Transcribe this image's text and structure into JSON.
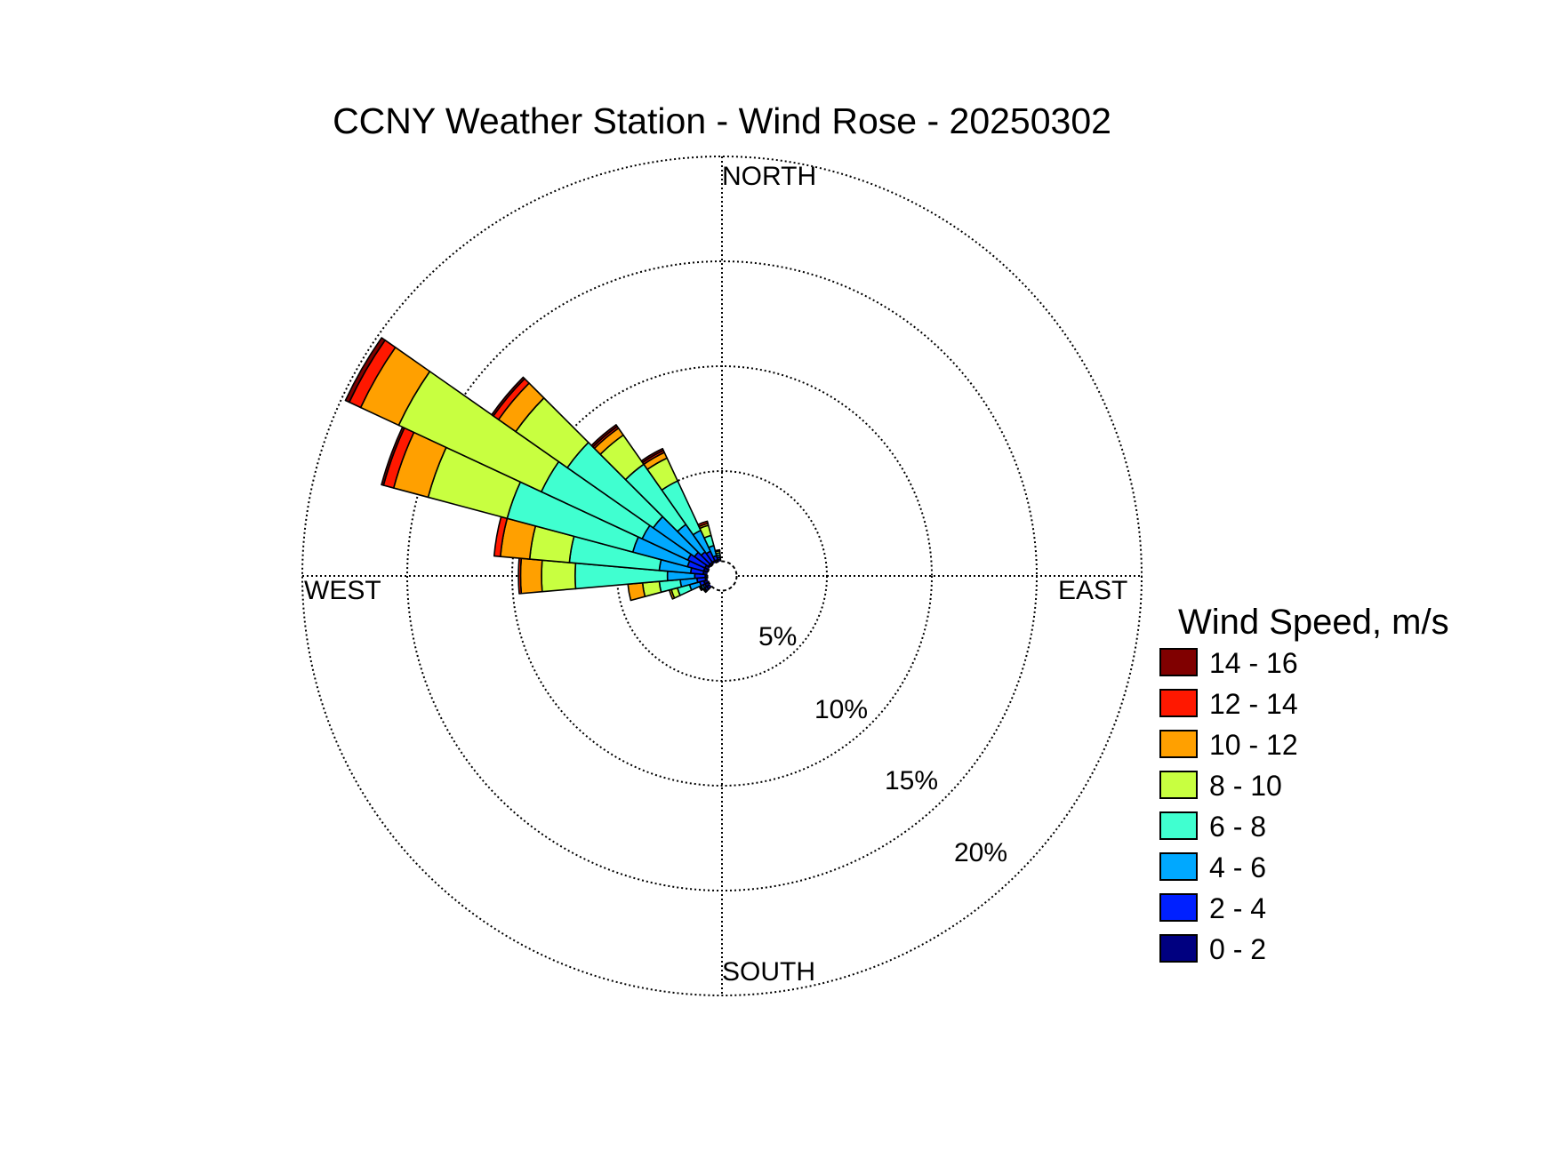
{
  "chart_data": {
    "type": "windrose",
    "title": "CCNY Weather Station - Wind Rose - 20250302",
    "direction_labels": {
      "north": "NORTH",
      "east": "EAST",
      "south": "SOUTH",
      "west": "WEST"
    },
    "ring_labels": [
      "5%",
      "10%",
      "15%",
      "20%"
    ],
    "radial_max_percent": 20,
    "legend_title": "Wind Speed, m/s",
    "speed_bins": [
      {
        "label": "0 - 2",
        "color": "#000080"
      },
      {
        "label": "2 - 4",
        "color": "#0020ff"
      },
      {
        "label": "4 - 6",
        "color": "#00a8ff"
      },
      {
        "label": "6 - 8",
        "color": "#40ffd0"
      },
      {
        "label": "8 - 10",
        "color": "#c8ff40"
      },
      {
        "label": "10 - 12",
        "color": "#ffa000"
      },
      {
        "label": "12 - 14",
        "color": "#ff1800"
      },
      {
        "label": "14 - 16",
        "color": "#800000"
      }
    ],
    "sector_width_deg": 10,
    "sectors": [
      {
        "direction_deg": 230,
        "cumulative_percent": [
          0.9,
          1.0,
          1.05,
          1.1,
          1.1,
          1.1,
          1.1,
          1.1
        ]
      },
      {
        "direction_deg": 240,
        "cumulative_percent": [
          0.9,
          1.0,
          1.1,
          1.15,
          1.2,
          1.2,
          1.2,
          1.2
        ]
      },
      {
        "direction_deg": 250,
        "cumulative_percent": [
          0.9,
          1.1,
          1.6,
          2.2,
          2.5,
          2.6,
          2.6,
          2.6
        ]
      },
      {
        "direction_deg": 260,
        "cumulative_percent": [
          0.8,
          1.2,
          2.0,
          3.0,
          3.8,
          4.5,
          4.5,
          4.5
        ]
      },
      {
        "direction_deg": 270,
        "cumulative_percent": [
          0.8,
          1.3,
          2.6,
          7.0,
          8.6,
          9.6,
          9.7,
          9.7
        ]
      },
      {
        "direction_deg": 280,
        "cumulative_percent": [
          0.9,
          1.5,
          3.0,
          7.3,
          9.2,
          10.6,
          10.9,
          10.9
        ]
      },
      {
        "direction_deg": 290,
        "cumulative_percent": [
          0.9,
          1.7,
          4.4,
          10.6,
          14.5,
          16.2,
          16.7,
          16.8
        ]
      },
      {
        "direction_deg": 300,
        "cumulative_percent": [
          0.9,
          1.8,
          4.2,
          9.5,
          17.0,
          19.0,
          19.6,
          19.8
        ]
      },
      {
        "direction_deg": 310,
        "cumulative_percent": [
          0.8,
          1.6,
          4.0,
          9.0,
          12.0,
          13.0,
          13.3,
          13.4
        ]
      },
      {
        "direction_deg": 320,
        "cumulative_percent": [
          0.8,
          1.4,
          3.0,
          6.5,
          8.2,
          8.6,
          8.7,
          8.8
        ]
      },
      {
        "direction_deg": 330,
        "cumulative_percent": [
          0.8,
          1.3,
          2.4,
          5.0,
          6.2,
          6.5,
          6.6,
          6.7
        ]
      },
      {
        "direction_deg": 340,
        "cumulative_percent": [
          0.8,
          1.0,
          1.5,
          2.0,
          2.5,
          2.6,
          2.7,
          2.7
        ]
      },
      {
        "direction_deg": 350,
        "cumulative_percent": [
          0.8,
          0.9,
          1.0,
          1.1,
          1.2,
          1.25,
          1.25,
          1.25
        ]
      }
    ]
  }
}
